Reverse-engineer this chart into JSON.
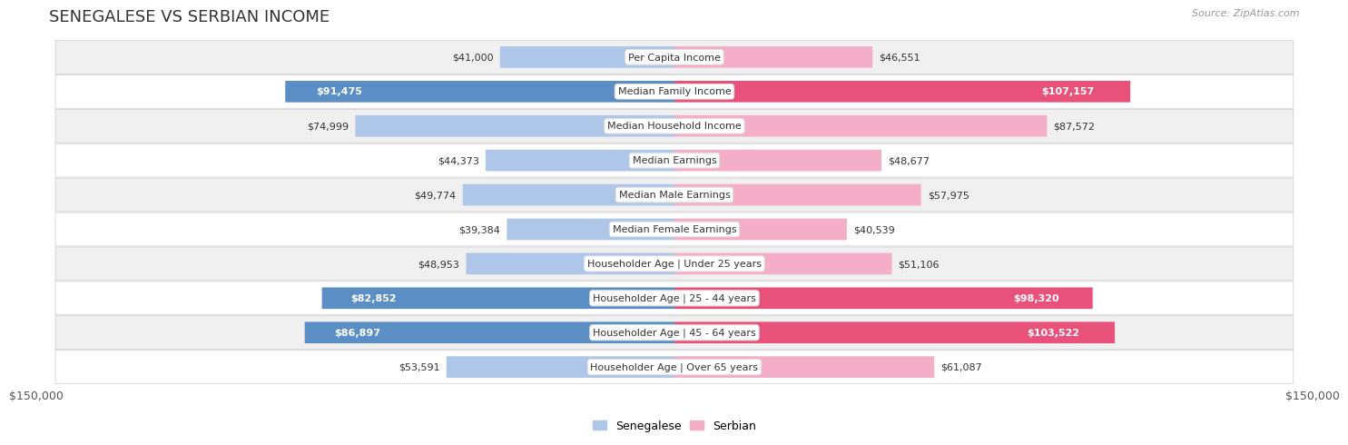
{
  "title": "SENEGALESE VS SERBIAN INCOME",
  "source": "Source: ZipAtlas.com",
  "categories": [
    "Per Capita Income",
    "Median Family Income",
    "Median Household Income",
    "Median Earnings",
    "Median Male Earnings",
    "Median Female Earnings",
    "Householder Age | Under 25 years",
    "Householder Age | 25 - 44 years",
    "Householder Age | 45 - 64 years",
    "Householder Age | Over 65 years"
  ],
  "senegalese": [
    41000,
    91475,
    74999,
    44373,
    49774,
    39384,
    48953,
    82852,
    86897,
    53591
  ],
  "serbian": [
    46551,
    107157,
    87572,
    48677,
    57975,
    40539,
    51106,
    98320,
    103522,
    61087
  ],
  "senegalese_labels": [
    "$41,000",
    "$91,475",
    "$74,999",
    "$44,373",
    "$49,774",
    "$39,384",
    "$48,953",
    "$82,852",
    "$86,897",
    "$53,591"
  ],
  "serbian_labels": [
    "$46,551",
    "$107,157",
    "$87,572",
    "$48,677",
    "$57,975",
    "$40,539",
    "$51,106",
    "$98,320",
    "$103,522",
    "$61,087"
  ],
  "senegalese_highlight": [
    false,
    true,
    false,
    false,
    false,
    false,
    false,
    true,
    true,
    false
  ],
  "serbian_highlight": [
    false,
    true,
    false,
    false,
    false,
    false,
    false,
    true,
    true,
    false
  ],
  "max_val": 150000,
  "blue_light": "#aec6e8",
  "blue_dark": "#5b8ec4",
  "pink_light": "#f5aec8",
  "pink_dark": "#e8527a",
  "row_bg_light": "#f0f0f0",
  "row_bg_white": "#ffffff",
  "fig_bg": "#ffffff",
  "xlabel_left": "$150,000",
  "xlabel_right": "$150,000",
  "title_fontsize": 13,
  "label_fontsize": 8,
  "value_fontsize": 8
}
